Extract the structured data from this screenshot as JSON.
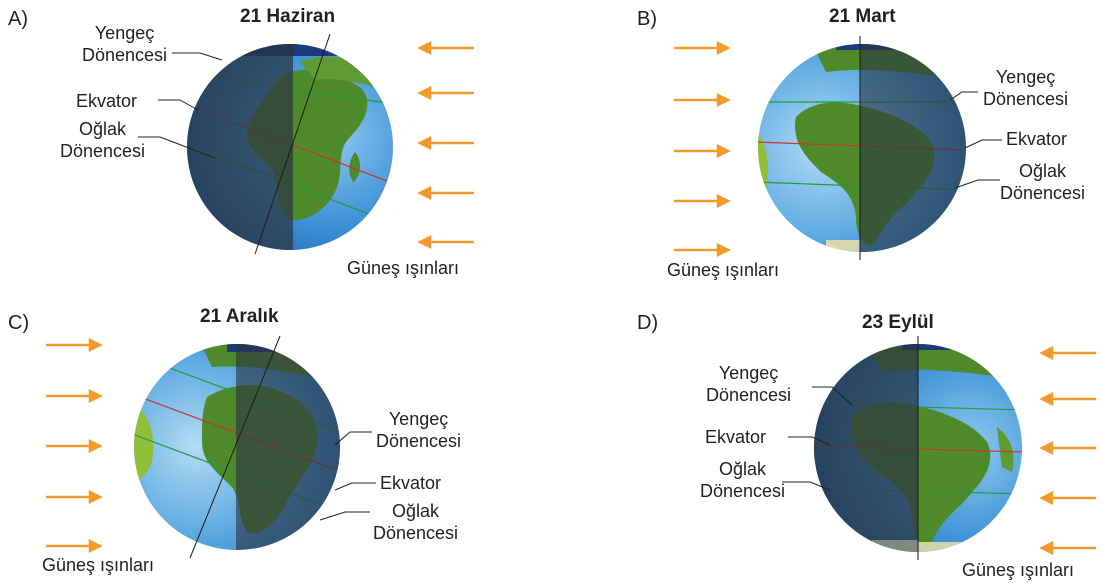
{
  "panels": [
    {
      "letter": "A)",
      "title": "21 Haziran",
      "labels": {
        "tropic_cancer": [
          "Yengeç",
          "Dönencesi"
        ],
        "equator": "Ekvator",
        "tropic_capricorn": [
          "Oğlak",
          "Dönencesi"
        ]
      },
      "sun_rays": "Güneş ışınları",
      "rays_direction": "left",
      "night_side": "left"
    },
    {
      "letter": "B)",
      "title": "21 Mart",
      "labels": {
        "tropic_cancer": [
          "Yengeç",
          "Dönencesi"
        ],
        "equator": "Ekvator",
        "tropic_capricorn": [
          "Oğlak",
          "Dönencesi"
        ]
      },
      "sun_rays": "Güneş ışınları",
      "rays_direction": "right",
      "night_side": "right"
    },
    {
      "letter": "C)",
      "title": "21 Aralık",
      "labels": {
        "tropic_cancer": [
          "Yengeç",
          "Dönencesi"
        ],
        "equator": "Ekvator",
        "tropic_capricorn": [
          "Oğlak",
          "Dönencesi"
        ]
      },
      "sun_rays": "Güneş ışınları",
      "rays_direction": "right",
      "night_side": "right"
    },
    {
      "letter": "D)",
      "title": "23 Eylül",
      "labels": {
        "tropic_cancer": [
          "Yengeç",
          "Dönencesi"
        ],
        "equator": "Ekvator",
        "tropic_capricorn": [
          "Oğlak",
          "Dönencesi"
        ]
      },
      "sun_rays": "Güneş ışınları",
      "rays_direction": "left",
      "night_side": "left"
    }
  ],
  "colors": {
    "ocean": "#3a8fd6",
    "ocean_light": "#8ec8ef",
    "land": "#4f8a2a",
    "land_light": "#8fbf3a",
    "night_shade": "#2b3440",
    "arrow": "#f39a2c",
    "tropic_line": "#1f9a3c",
    "equator_line": "#c0392b",
    "text": "#231f20"
  }
}
